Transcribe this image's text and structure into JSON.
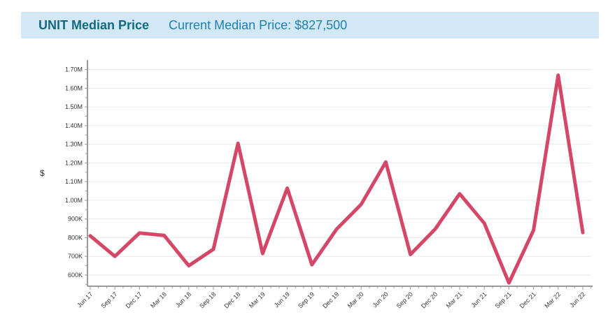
{
  "header": {
    "title": "UNIT Median Price",
    "subtitle": "Current Median Price: $827,500",
    "background_color": "#d2e8f6",
    "title_color": "#15697f",
    "subtitle_color": "#2180ad"
  },
  "chart_data": {
    "type": "line",
    "title": "UNIT Median Price",
    "xlabel": "",
    "ylabel": "$",
    "legend": false,
    "grid": true,
    "line_color": "#d54766",
    "grid_color": "#e8e8e8",
    "axis_color": "#9a9a9a",
    "tick_label_color": "#333333",
    "ylim": [
      540000,
      1736000
    ],
    "categories": [
      "Jun 17",
      "Sep 17",
      "Dec 17",
      "Mar 18",
      "Jun 18",
      "Sep 18",
      "Dec 18",
      "Mar 19",
      "Jun 19",
      "Sep 19",
      "Dec 19",
      "Mar 20",
      "Jun 20",
      "Sep 20",
      "Dec 20",
      "Mar 21",
      "Jun 21",
      "Sep 21",
      "Dec 21",
      "Mar 22",
      "Jun 22"
    ],
    "series": [
      {
        "name": "UNIT Median Price",
        "values": [
          810000,
          700000,
          825000,
          812000,
          650000,
          738000,
          1305000,
          715000,
          1065000,
          655000,
          845000,
          978000,
          1205000,
          710000,
          845000,
          1035000,
          877000,
          558000,
          840000,
          1670000,
          827500
        ]
      }
    ],
    "y_ticks": [
      {
        "value": 600000,
        "label": "600K"
      },
      {
        "value": 700000,
        "label": "700K"
      },
      {
        "value": 800000,
        "label": "800K"
      },
      {
        "value": 900000,
        "label": "900K"
      },
      {
        "value": 1000000,
        "label": "1.00M"
      },
      {
        "value": 1100000,
        "label": "1.10M"
      },
      {
        "value": 1200000,
        "label": "1.20M"
      },
      {
        "value": 1300000,
        "label": "1.30M"
      },
      {
        "value": 1400000,
        "label": "1.40M"
      },
      {
        "value": 1500000,
        "label": "1.50M"
      },
      {
        "value": 1600000,
        "label": "1.60M"
      },
      {
        "value": 1700000,
        "label": "1.70M"
      }
    ]
  }
}
